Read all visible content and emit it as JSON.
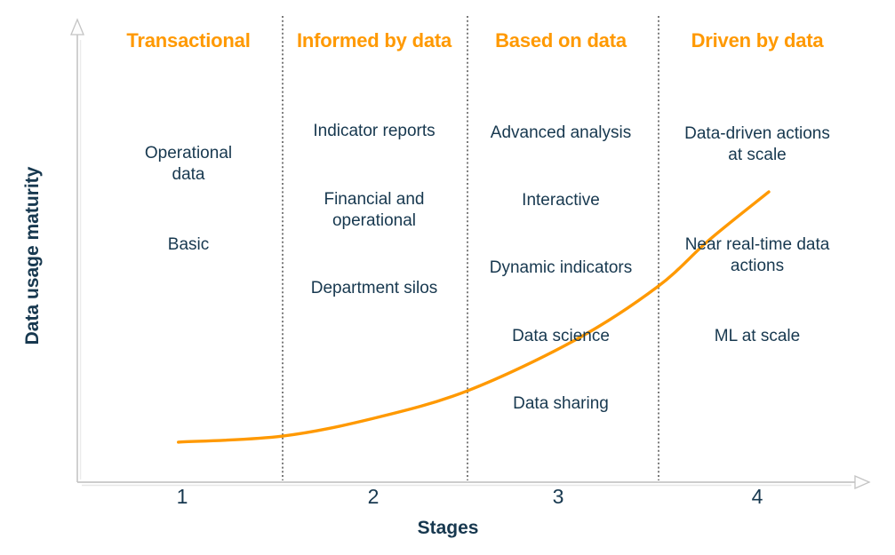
{
  "colors": {
    "accent_orange": "#FF9900",
    "text_navy": "#17384F",
    "axis_gray": "#C4C4C4",
    "divider_gray": "#7A7A7A"
  },
  "y_axis": {
    "label": "Data usage maturity"
  },
  "x_axis": {
    "label": "Stages",
    "ticks": [
      "1",
      "2",
      "3",
      "4"
    ]
  },
  "columns": [
    {
      "header": "Transactional",
      "items": [
        "Operational\ndata",
        "Basic"
      ]
    },
    {
      "header": "Informed by data",
      "items": [
        "Indicator reports",
        "Financial and\noperational",
        "Department silos"
      ]
    },
    {
      "header": "Based on data",
      "items": [
        "Advanced analysis",
        "Interactive",
        "Dynamic indicators",
        "Data science",
        "Data sharing"
      ]
    },
    {
      "header": "Driven by data",
      "items": [
        "Data-driven actions\nat scale",
        "Near real-time data\nactions",
        "ML at scale"
      ]
    }
  ],
  "chart_data": {
    "type": "line",
    "title": "",
    "xlabel": "Stages",
    "ylabel": "Data usage maturity",
    "x_ticks": [
      1,
      2,
      3,
      4
    ],
    "xlim": [
      0.55,
      4.45
    ],
    "ylim": [
      0,
      1
    ],
    "grid": false,
    "legend": "none",
    "dividers_at_x": [
      1.5,
      2.5,
      3.5
    ],
    "series": [
      {
        "name": "Data usage maturity curve",
        "color": "#FF9900",
        "style": "solid",
        "y_units": "relative maturity, fraction of axis height (estimated)",
        "points": [
          {
            "x": 0.98,
            "y": 0.087
          },
          {
            "x": 1.52,
            "y": 0.1
          },
          {
            "x": 2.0,
            "y": 0.139
          },
          {
            "x": 2.49,
            "y": 0.199
          },
          {
            "x": 3.05,
            "y": 0.309
          },
          {
            "x": 3.48,
            "y": 0.425
          },
          {
            "x": 3.75,
            "y": 0.527
          },
          {
            "x": 4.06,
            "y": 0.631
          }
        ]
      }
    ],
    "stage_annotations": [
      {
        "stage": 1,
        "header": "Transactional",
        "items": [
          "Operational data",
          "Basic"
        ]
      },
      {
        "stage": 2,
        "header": "Informed by data",
        "items": [
          "Indicator reports",
          "Financial and operational",
          "Department silos"
        ]
      },
      {
        "stage": 3,
        "header": "Based on data",
        "items": [
          "Advanced analysis",
          "Interactive",
          "Dynamic indicators",
          "Data science",
          "Data sharing"
        ]
      },
      {
        "stage": 4,
        "header": "Driven by data",
        "items": [
          "Data-driven actions at scale",
          "Near real-time data actions",
          "ML at scale"
        ]
      }
    ]
  }
}
